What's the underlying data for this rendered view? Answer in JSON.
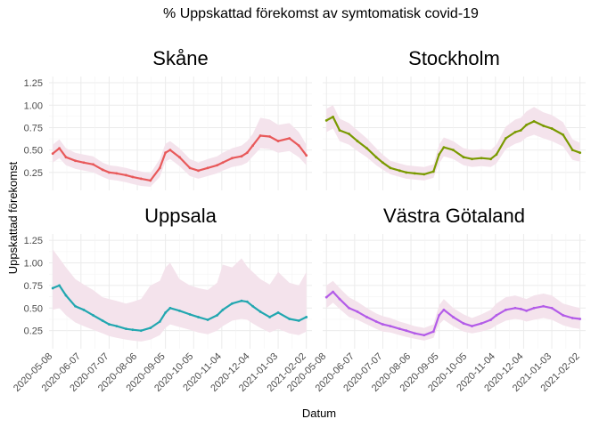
{
  "chart_data": {
    "type": "line",
    "title": "% Uppskattad förekomst av symtomatisk covid-19",
    "xlabel": "Datum",
    "ylabel": "Uppskattad förekomst",
    "ylim": [
      0.05,
      1.32
    ],
    "yticks": [
      0.25,
      0.5,
      0.75,
      1.0,
      1.25
    ],
    "ytick_labels": [
      "0.25",
      "0.50",
      "0.75",
      "1.00",
      "1.25"
    ],
    "xlim": [
      "2020-05-04",
      "2021-02-08"
    ],
    "xticks": [
      "2020-05-08",
      "2020-06-07",
      "2020-07-07",
      "2020-08-06",
      "2020-09-05",
      "2020-10-05",
      "2020-11-04",
      "2020-12-04",
      "2021-01-03",
      "2021-02-02"
    ],
    "grid": true,
    "band_color": "#f4e3ec",
    "panels": [
      {
        "name": "Skåne",
        "color": "#e8595a",
        "x": [
          "2020-05-08",
          "2020-05-15",
          "2020-05-22",
          "2020-06-01",
          "2020-06-10",
          "2020-06-20",
          "2020-06-30",
          "2020-07-07",
          "2020-07-15",
          "2020-07-25",
          "2020-08-01",
          "2020-08-10",
          "2020-08-20",
          "2020-08-30",
          "2020-09-05",
          "2020-09-10",
          "2020-09-20",
          "2020-10-01",
          "2020-10-10",
          "2020-10-20",
          "2020-10-30",
          "2020-11-05",
          "2020-11-15",
          "2020-11-25",
          "2020-12-01",
          "2020-12-07",
          "2020-12-15",
          "2020-12-25",
          "2021-01-03",
          "2021-01-15",
          "2021-01-25",
          "2021-02-02"
        ],
        "y": [
          0.46,
          0.52,
          0.42,
          0.38,
          0.36,
          0.34,
          0.28,
          0.25,
          0.24,
          0.22,
          0.2,
          0.18,
          0.16,
          0.3,
          0.47,
          0.5,
          0.42,
          0.3,
          0.27,
          0.3,
          0.33,
          0.36,
          0.41,
          0.43,
          0.47,
          0.55,
          0.66,
          0.65,
          0.6,
          0.63,
          0.55,
          0.44
        ],
        "lo": [
          0.36,
          0.41,
          0.33,
          0.29,
          0.27,
          0.25,
          0.2,
          0.17,
          0.16,
          0.14,
          0.12,
          0.1,
          0.09,
          0.2,
          0.37,
          0.4,
          0.32,
          0.21,
          0.18,
          0.21,
          0.24,
          0.27,
          0.31,
          0.33,
          0.36,
          0.43,
          0.52,
          0.51,
          0.47,
          0.49,
          0.42,
          0.33
        ],
        "hi": [
          0.56,
          0.62,
          0.52,
          0.47,
          0.45,
          0.43,
          0.36,
          0.33,
          0.32,
          0.3,
          0.28,
          0.26,
          0.24,
          0.4,
          0.57,
          0.6,
          0.52,
          0.4,
          0.36,
          0.4,
          0.43,
          0.47,
          0.52,
          0.55,
          0.6,
          0.68,
          0.86,
          0.84,
          0.78,
          0.8,
          0.7,
          0.56
        ]
      },
      {
        "name": "Stockholm",
        "color": "#7a9a01",
        "x": [
          "2020-05-08",
          "2020-05-15",
          "2020-05-22",
          "2020-06-01",
          "2020-06-10",
          "2020-06-20",
          "2020-06-30",
          "2020-07-07",
          "2020-07-15",
          "2020-07-25",
          "2020-08-01",
          "2020-08-10",
          "2020-08-20",
          "2020-08-30",
          "2020-09-05",
          "2020-09-10",
          "2020-09-20",
          "2020-10-01",
          "2020-10-10",
          "2020-10-20",
          "2020-10-30",
          "2020-11-05",
          "2020-11-15",
          "2020-11-25",
          "2020-12-01",
          "2020-12-07",
          "2020-12-15",
          "2020-12-25",
          "2021-01-03",
          "2021-01-15",
          "2021-01-25",
          "2021-02-02"
        ],
        "y": [
          0.83,
          0.87,
          0.72,
          0.68,
          0.6,
          0.52,
          0.42,
          0.36,
          0.3,
          0.27,
          0.25,
          0.24,
          0.23,
          0.26,
          0.45,
          0.53,
          0.5,
          0.42,
          0.4,
          0.41,
          0.4,
          0.45,
          0.63,
          0.7,
          0.72,
          0.78,
          0.82,
          0.77,
          0.74,
          0.67,
          0.5,
          0.47
        ],
        "lo": [
          0.7,
          0.74,
          0.6,
          0.56,
          0.49,
          0.42,
          0.33,
          0.28,
          0.23,
          0.2,
          0.18,
          0.17,
          0.16,
          0.19,
          0.35,
          0.43,
          0.4,
          0.33,
          0.31,
          0.32,
          0.31,
          0.35,
          0.51,
          0.57,
          0.59,
          0.64,
          0.67,
          0.63,
          0.6,
          0.54,
          0.39,
          0.37
        ],
        "hi": [
          0.96,
          1.0,
          0.85,
          0.8,
          0.72,
          0.63,
          0.52,
          0.45,
          0.38,
          0.35,
          0.33,
          0.32,
          0.31,
          0.34,
          0.56,
          0.64,
          0.6,
          0.52,
          0.5,
          0.51,
          0.5,
          0.56,
          0.76,
          0.84,
          0.86,
          0.93,
          0.98,
          0.92,
          0.89,
          0.81,
          0.62,
          0.58
        ]
      },
      {
        "name": "Uppsala",
        "color": "#22a7b0",
        "x": [
          "2020-05-08",
          "2020-05-15",
          "2020-05-22",
          "2020-06-01",
          "2020-06-10",
          "2020-06-20",
          "2020-06-30",
          "2020-07-07",
          "2020-07-15",
          "2020-07-25",
          "2020-08-01",
          "2020-08-10",
          "2020-08-20",
          "2020-08-30",
          "2020-09-05",
          "2020-09-10",
          "2020-09-20",
          "2020-10-01",
          "2020-10-10",
          "2020-10-20",
          "2020-10-30",
          "2020-11-05",
          "2020-11-15",
          "2020-11-25",
          "2020-12-01",
          "2020-12-07",
          "2020-12-15",
          "2020-12-25",
          "2021-01-03",
          "2021-01-15",
          "2021-01-25",
          "2021-02-02"
        ],
        "y": [
          0.72,
          0.75,
          0.64,
          0.52,
          0.48,
          0.42,
          0.36,
          0.32,
          0.3,
          0.27,
          0.26,
          0.25,
          0.28,
          0.35,
          0.45,
          0.5,
          0.47,
          0.43,
          0.4,
          0.37,
          0.42,
          0.48,
          0.55,
          0.58,
          0.57,
          0.52,
          0.46,
          0.4,
          0.45,
          0.38,
          0.36,
          0.4
        ],
        "lo": [
          0.48,
          0.5,
          0.42,
          0.34,
          0.3,
          0.26,
          0.22,
          0.19,
          0.17,
          0.15,
          0.14,
          0.13,
          0.15,
          0.2,
          0.28,
          0.32,
          0.29,
          0.26,
          0.23,
          0.21,
          0.25,
          0.3,
          0.36,
          0.38,
          0.37,
          0.33,
          0.28,
          0.23,
          0.27,
          0.22,
          0.2,
          0.24
        ],
        "hi": [
          1.15,
          1.05,
          0.95,
          0.82,
          0.76,
          0.7,
          0.62,
          0.6,
          0.58,
          0.55,
          0.57,
          0.6,
          0.75,
          0.8,
          0.95,
          1.0,
          0.82,
          0.75,
          0.72,
          0.7,
          0.78,
          0.98,
          0.95,
          1.05,
          0.96,
          0.9,
          0.82,
          0.76,
          0.9,
          0.78,
          0.75,
          0.9
        ]
      },
      {
        "name": "Västra Götaland",
        "color": "#b35ce8",
        "x": [
          "2020-05-08",
          "2020-05-15",
          "2020-05-22",
          "2020-06-01",
          "2020-06-10",
          "2020-06-20",
          "2020-06-30",
          "2020-07-07",
          "2020-07-15",
          "2020-07-25",
          "2020-08-01",
          "2020-08-10",
          "2020-08-20",
          "2020-08-30",
          "2020-09-05",
          "2020-09-10",
          "2020-09-20",
          "2020-10-01",
          "2020-10-10",
          "2020-10-20",
          "2020-10-30",
          "2020-11-05",
          "2020-11-15",
          "2020-11-25",
          "2020-12-01",
          "2020-12-07",
          "2020-12-15",
          "2020-12-25",
          "2021-01-03",
          "2021-01-15",
          "2021-01-25",
          "2021-02-02"
        ],
        "y": [
          0.62,
          0.68,
          0.6,
          0.5,
          0.46,
          0.4,
          0.35,
          0.32,
          0.3,
          0.27,
          0.25,
          0.22,
          0.2,
          0.24,
          0.42,
          0.48,
          0.4,
          0.33,
          0.3,
          0.33,
          0.37,
          0.42,
          0.48,
          0.5,
          0.49,
          0.47,
          0.5,
          0.52,
          0.5,
          0.42,
          0.39,
          0.38
        ],
        "lo": [
          0.5,
          0.56,
          0.49,
          0.4,
          0.37,
          0.32,
          0.27,
          0.24,
          0.23,
          0.2,
          0.18,
          0.16,
          0.14,
          0.17,
          0.32,
          0.37,
          0.3,
          0.24,
          0.22,
          0.24,
          0.27,
          0.31,
          0.36,
          0.38,
          0.37,
          0.35,
          0.37,
          0.39,
          0.37,
          0.31,
          0.28,
          0.27
        ],
        "hi": [
          0.75,
          0.8,
          0.72,
          0.62,
          0.57,
          0.5,
          0.44,
          0.41,
          0.39,
          0.35,
          0.33,
          0.3,
          0.28,
          0.32,
          0.53,
          0.6,
          0.5,
          0.43,
          0.39,
          0.43,
          0.48,
          0.55,
          0.62,
          0.64,
          0.62,
          0.6,
          0.64,
          0.66,
          0.64,
          0.55,
          0.52,
          0.5
        ]
      }
    ]
  }
}
